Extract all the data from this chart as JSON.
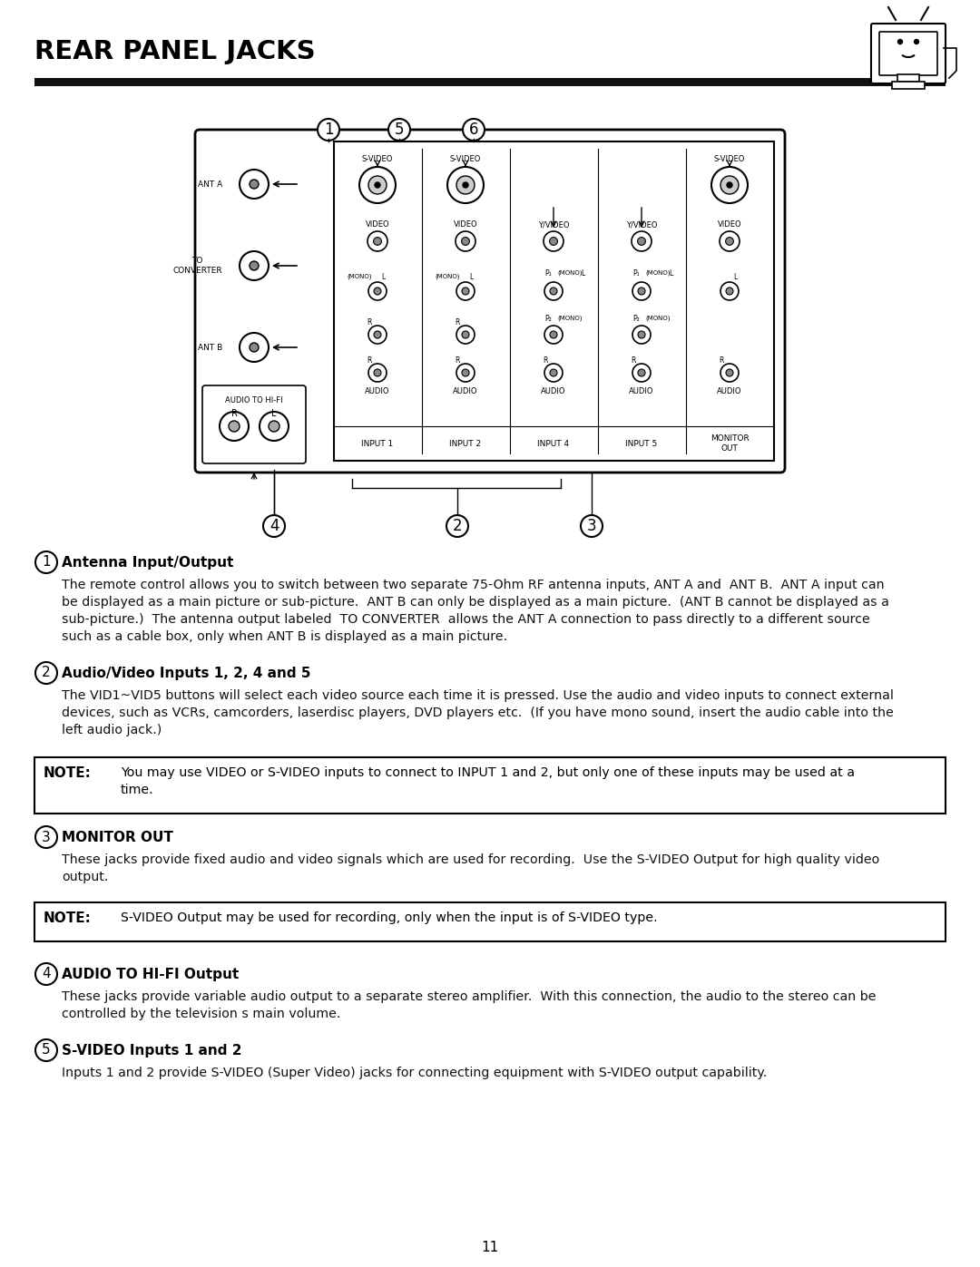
{
  "title": "REAR PANEL JACKS",
  "page_number": "11",
  "background_color": "#ffffff",
  "text_color": "#000000",
  "sections": [
    {
      "number": "1",
      "heading": "Antenna Input/Output",
      "body": "The remote control allows you to switch between two separate 75-Ohm RF antenna inputs, ANT A and  ANT B.  ANT A input can\nbe displayed as a main picture or sub-picture.  ANT B can only be displayed as a main picture.  (ANT B cannot be displayed as a\nsub-picture.)  The antenna output labeled  TO CONVERTER  allows the ANT A connection to pass directly to a different source\nsuch as a cable box, only when ANT B is displayed as a main picture."
    },
    {
      "number": "2",
      "heading": "Audio/Video Inputs 1, 2, 4 and 5",
      "body": "The VID1~VID5 buttons will select each video source each time it is pressed. Use the audio and video inputs to connect external\ndevices, such as VCRs, camcorders, laserdisc players, DVD players etc.  (If you have mono sound, insert the audio cable into the\nleft audio jack.)"
    },
    {
      "number": "3",
      "heading": "MONITOR OUT",
      "body": "These jacks provide fixed audio and video signals which are used for recording.  Use the S-VIDEO Output for high quality video\noutput."
    },
    {
      "number": "4",
      "heading": "AUDIO TO HI-FI Output",
      "body": "These jacks provide variable audio output to a separate stereo amplifier.  With this connection, the audio to the stereo can be\ncontrolled by the television s main volume."
    },
    {
      "number": "5",
      "heading": "S-VIDEO Inputs 1 and 2",
      "body": "Inputs 1 and 2 provide S-VIDEO (Super Video) jacks for connecting equipment with S-VIDEO output capability."
    }
  ],
  "note1": {
    "label": "NOTE:",
    "text": "You may use VIDEO or S-VIDEO inputs to connect to INPUT 1 and 2, but only one of these inputs may be used at a\ntime."
  },
  "note2": {
    "label": "NOTE:",
    "text": "S-VIDEO Output may be used for recording, only when the input is of S-VIDEO type."
  }
}
